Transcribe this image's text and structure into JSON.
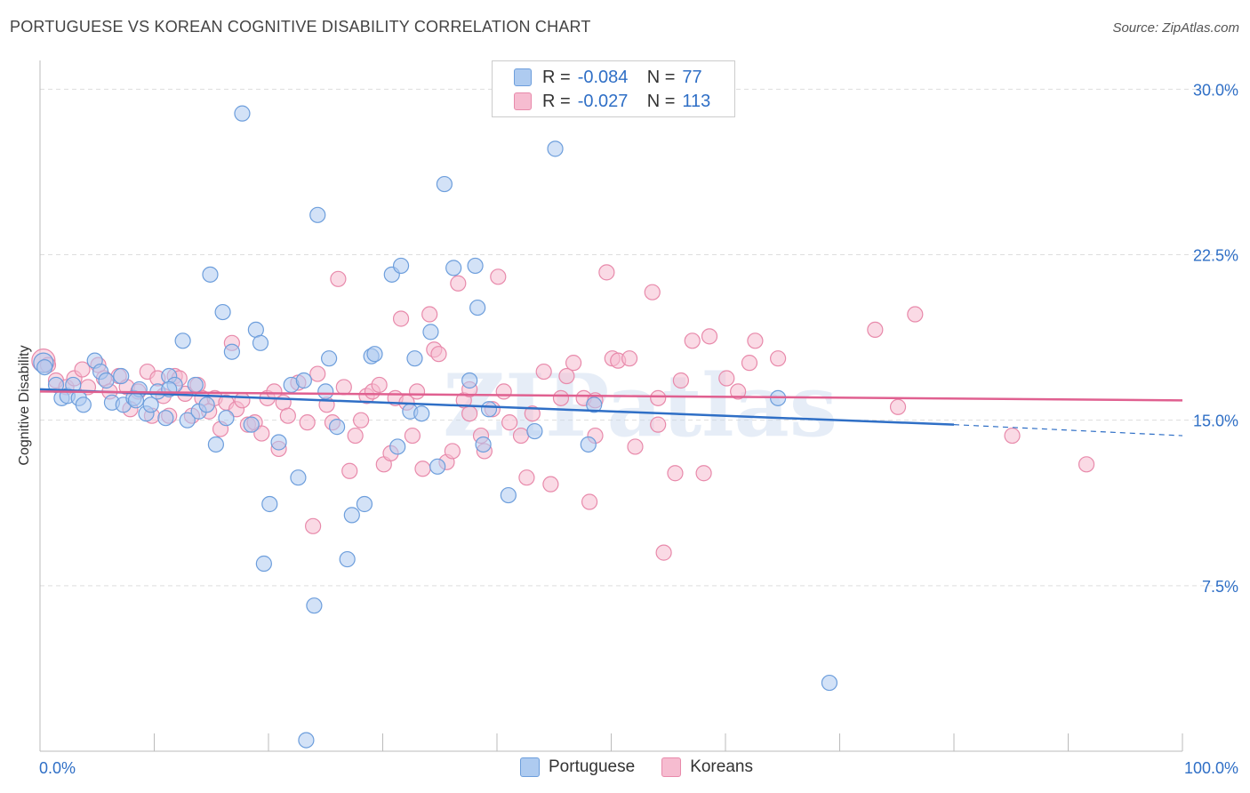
{
  "title": "PORTUGUESE VS KOREAN COGNITIVE DISABILITY CORRELATION CHART",
  "source": "Source: ZipAtlas.com",
  "watermark": "ZIPatlas",
  "colors": {
    "blue_fill": "#aecbf0",
    "blue_stroke": "#6d9edc",
    "blue_line": "#2f6fc6",
    "pink_fill": "#f6bcd0",
    "pink_stroke": "#e88aab",
    "pink_line": "#e06090",
    "tick_text": "#2f6fc6",
    "grid": "#dddddd"
  },
  "legend_top": {
    "rows": [
      {
        "series": "Portuguese",
        "r_label": "R =",
        "r_value": "-0.084",
        "n_label": "N =",
        "n_value": "77"
      },
      {
        "series": "Koreans",
        "r_label": "R =",
        "r_value": "-0.027",
        "n_label": "N =",
        "n_value": "113"
      }
    ]
  },
  "legend_bottom": [
    "Portuguese",
    "Koreans"
  ],
  "chart_data": {
    "type": "scatter",
    "title": "PORTUGUESE VS KOREAN COGNITIVE DISABILITY CORRELATION CHART",
    "xlabel": "",
    "ylabel": "Cognitive Disability",
    "xlim": [
      0,
      100
    ],
    "ylim": [
      0,
      30.9
    ],
    "x_tick_labels": [
      "0.0%",
      "100.0%"
    ],
    "y_ticks": [
      7.5,
      15.0,
      22.5,
      30.0
    ],
    "y_tick_labels": [
      "7.5%",
      "15.0%",
      "22.5%",
      "30.0%"
    ],
    "grid": true,
    "legend": "top-center",
    "series": [
      {
        "name": "Portuguese",
        "r": -0.084,
        "n": 77,
        "trend": {
          "x": [
            0,
            80,
            100
          ],
          "y": [
            16.4,
            14.8,
            14.3
          ],
          "dashed_from": 80
        },
        "points": [
          [
            0.3,
            17.6
          ],
          [
            0.4,
            17.4
          ],
          [
            1.4,
            16.6
          ],
          [
            1.9,
            16.0
          ],
          [
            2.4,
            16.1
          ],
          [
            2.9,
            16.6
          ],
          [
            3.4,
            16.0
          ],
          [
            3.8,
            15.7
          ],
          [
            4.8,
            17.7
          ],
          [
            5.3,
            17.2
          ],
          [
            5.8,
            16.8
          ],
          [
            6.3,
            15.8
          ],
          [
            7.1,
            17.0
          ],
          [
            7.3,
            15.7
          ],
          [
            8.2,
            16.0
          ],
          [
            8.7,
            16.4
          ],
          [
            9.3,
            15.3
          ],
          [
            9.7,
            15.7
          ],
          [
            10.3,
            16.3
          ],
          [
            11.0,
            15.1
          ],
          [
            11.3,
            17.0
          ],
          [
            11.8,
            16.6
          ],
          [
            12.5,
            18.6
          ],
          [
            12.9,
            15.0
          ],
          [
            13.6,
            16.6
          ],
          [
            13.9,
            15.4
          ],
          [
            14.6,
            15.7
          ],
          [
            14.9,
            21.6
          ],
          [
            15.4,
            13.9
          ],
          [
            16.0,
            19.9
          ],
          [
            16.3,
            15.1
          ],
          [
            16.8,
            18.1
          ],
          [
            17.7,
            28.9
          ],
          [
            18.5,
            14.8
          ],
          [
            18.9,
            19.1
          ],
          [
            19.3,
            18.5
          ],
          [
            19.6,
            8.5
          ],
          [
            20.1,
            11.2
          ],
          [
            20.9,
            14.0
          ],
          [
            22.0,
            16.6
          ],
          [
            22.6,
            12.4
          ],
          [
            23.1,
            16.8
          ],
          [
            23.3,
            0.5
          ],
          [
            24.0,
            6.6
          ],
          [
            24.3,
            24.3
          ],
          [
            25.0,
            16.3
          ],
          [
            25.3,
            17.8
          ],
          [
            26.0,
            14.7
          ],
          [
            26.9,
            8.7
          ],
          [
            27.3,
            10.7
          ],
          [
            28.4,
            11.2
          ],
          [
            29.0,
            17.9
          ],
          [
            29.3,
            18.0
          ],
          [
            30.8,
            21.6
          ],
          [
            31.3,
            13.8
          ],
          [
            31.6,
            22.0
          ],
          [
            32.4,
            15.4
          ],
          [
            32.8,
            17.8
          ],
          [
            33.4,
            15.3
          ],
          [
            34.2,
            19.0
          ],
          [
            34.8,
            12.9
          ],
          [
            35.4,
            25.7
          ],
          [
            36.2,
            21.9
          ],
          [
            37.6,
            16.8
          ],
          [
            38.1,
            22.0
          ],
          [
            38.3,
            20.1
          ],
          [
            38.8,
            13.9
          ],
          [
            39.3,
            15.5
          ],
          [
            41.0,
            11.6
          ],
          [
            43.3,
            14.5
          ],
          [
            45.1,
            27.3
          ],
          [
            48.0,
            13.9
          ],
          [
            48.5,
            15.7
          ],
          [
            69.1,
            3.1
          ],
          [
            64.6,
            16.0
          ],
          [
            8.4,
            15.9
          ],
          [
            11.3,
            16.4
          ]
        ]
      },
      {
        "name": "Koreans",
        "r": -0.027,
        "n": 113,
        "trend": {
          "x": [
            0,
            100
          ],
          "y": [
            16.3,
            15.9
          ]
        },
        "points": [
          [
            0.3,
            17.7
          ],
          [
            0.7,
            17.5
          ],
          [
            1.4,
            16.8
          ],
          [
            2.3,
            16.5
          ],
          [
            3.0,
            16.9
          ],
          [
            3.7,
            17.3
          ],
          [
            4.2,
            16.5
          ],
          [
            5.1,
            17.5
          ],
          [
            5.6,
            16.9
          ],
          [
            6.1,
            16.3
          ],
          [
            6.9,
            17.0
          ],
          [
            7.6,
            16.5
          ],
          [
            7.9,
            15.5
          ],
          [
            8.6,
            16.3
          ],
          [
            9.4,
            17.2
          ],
          [
            9.8,
            15.2
          ],
          [
            10.3,
            16.9
          ],
          [
            10.8,
            16.1
          ],
          [
            11.3,
            15.2
          ],
          [
            11.8,
            17.0
          ],
          [
            12.2,
            16.9
          ],
          [
            12.7,
            16.2
          ],
          [
            13.3,
            15.2
          ],
          [
            13.8,
            16.6
          ],
          [
            14.2,
            16.0
          ],
          [
            14.8,
            15.4
          ],
          [
            15.3,
            16.0
          ],
          [
            15.8,
            14.6
          ],
          [
            16.3,
            15.8
          ],
          [
            16.8,
            18.5
          ],
          [
            17.2,
            15.5
          ],
          [
            17.7,
            15.9
          ],
          [
            18.2,
            14.8
          ],
          [
            18.8,
            14.9
          ],
          [
            19.4,
            14.4
          ],
          [
            19.9,
            16.0
          ],
          [
            20.5,
            16.3
          ],
          [
            20.9,
            13.7
          ],
          [
            21.3,
            15.8
          ],
          [
            21.7,
            15.2
          ],
          [
            22.6,
            16.7
          ],
          [
            23.4,
            14.9
          ],
          [
            23.9,
            10.2
          ],
          [
            24.3,
            17.1
          ],
          [
            25.1,
            15.7
          ],
          [
            25.6,
            14.9
          ],
          [
            26.1,
            21.4
          ],
          [
            26.6,
            16.5
          ],
          [
            27.1,
            12.7
          ],
          [
            27.6,
            14.3
          ],
          [
            28.1,
            15.0
          ],
          [
            28.6,
            16.1
          ],
          [
            29.1,
            16.3
          ],
          [
            29.7,
            16.6
          ],
          [
            30.1,
            13.0
          ],
          [
            30.7,
            13.5
          ],
          [
            31.1,
            16.0
          ],
          [
            31.6,
            19.6
          ],
          [
            32.1,
            15.8
          ],
          [
            32.6,
            14.3
          ],
          [
            33.0,
            16.3
          ],
          [
            33.5,
            12.8
          ],
          [
            34.1,
            19.8
          ],
          [
            34.5,
            18.2
          ],
          [
            34.9,
            18.0
          ],
          [
            35.6,
            13.1
          ],
          [
            36.1,
            13.6
          ],
          [
            36.6,
            21.2
          ],
          [
            37.1,
            15.9
          ],
          [
            37.6,
            15.3
          ],
          [
            38.6,
            14.3
          ],
          [
            38.9,
            13.6
          ],
          [
            39.6,
            15.5
          ],
          [
            40.1,
            21.5
          ],
          [
            40.6,
            16.3
          ],
          [
            41.1,
            14.9
          ],
          [
            42.1,
            14.3
          ],
          [
            42.6,
            12.4
          ],
          [
            43.1,
            15.3
          ],
          [
            44.1,
            17.2
          ],
          [
            44.7,
            12.1
          ],
          [
            45.6,
            16.0
          ],
          [
            46.1,
            17.0
          ],
          [
            46.7,
            17.6
          ],
          [
            47.6,
            16.0
          ],
          [
            48.1,
            11.3
          ],
          [
            48.6,
            14.3
          ],
          [
            49.6,
            21.7
          ],
          [
            50.1,
            17.8
          ],
          [
            50.6,
            17.7
          ],
          [
            51.6,
            17.8
          ],
          [
            52.1,
            13.8
          ],
          [
            53.6,
            20.8
          ],
          [
            54.1,
            16.0
          ],
          [
            54.6,
            9.0
          ],
          [
            55.6,
            12.6
          ],
          [
            56.1,
            16.8
          ],
          [
            57.1,
            18.6
          ],
          [
            58.1,
            12.6
          ],
          [
            58.6,
            18.8
          ],
          [
            60.1,
            16.9
          ],
          [
            61.1,
            16.3
          ],
          [
            62.1,
            17.6
          ],
          [
            62.6,
            18.6
          ],
          [
            64.6,
            17.8
          ],
          [
            75.1,
            15.6
          ],
          [
            73.1,
            19.1
          ],
          [
            76.6,
            19.8
          ],
          [
            85.1,
            14.3
          ],
          [
            91.6,
            13.0
          ],
          [
            54.1,
            14.8
          ],
          [
            48.6,
            15.9
          ],
          [
            37.6,
            16.4
          ]
        ]
      }
    ]
  },
  "y_axis_label": "Cognitive Disability",
  "x_axis_left": "0.0%",
  "x_axis_right": "100.0%"
}
